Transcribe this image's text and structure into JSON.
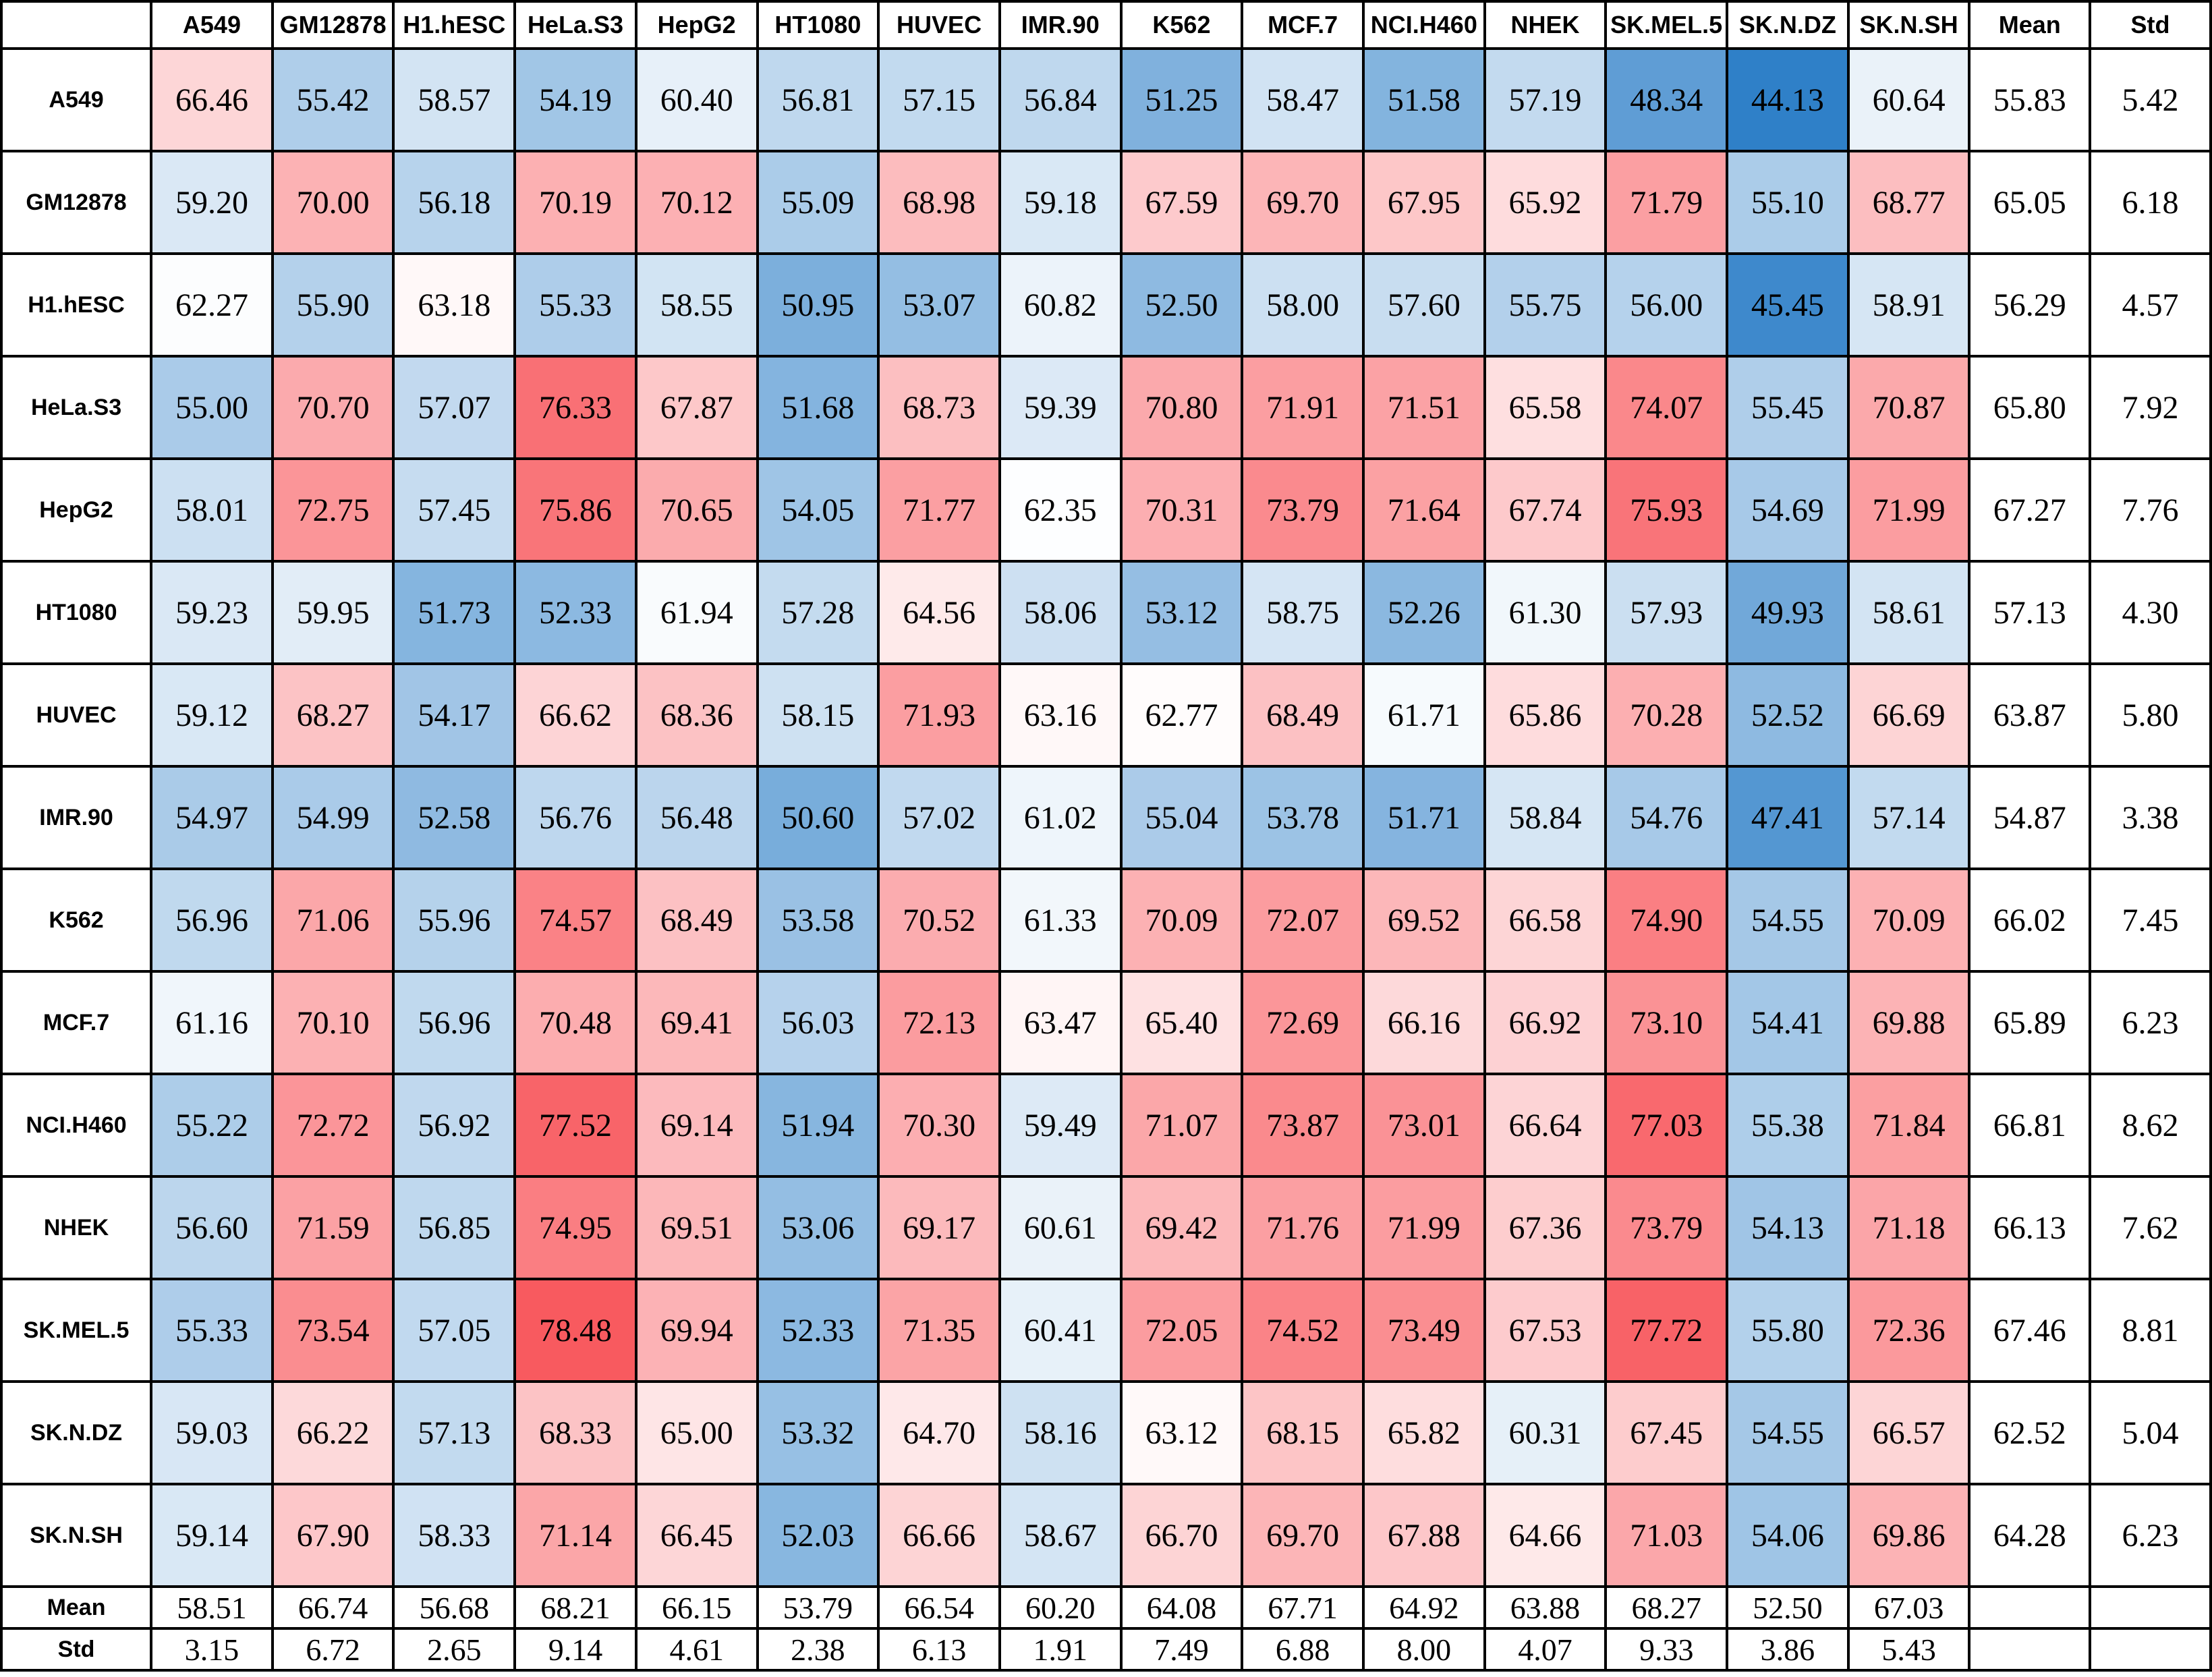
{
  "chart_data": {
    "type": "heatmap",
    "title": "",
    "colors": {
      "low": "#2f80c8",
      "mid": "#ffffff",
      "high": "#f85a5f"
    },
    "color_scale": {
      "min": 44.13,
      "mid": 62.5,
      "max": 78.48
    },
    "columns": [
      "A549",
      "GM12878",
      "H1.hESC",
      "HeLa.S3",
      "HepG2",
      "HT1080",
      "HUVEC",
      "IMR.90",
      "K562",
      "MCF.7",
      "NCI.H460",
      "NHEK",
      "SK.MEL.5",
      "SK.N.DZ",
      "SK.N.SH"
    ],
    "stat_columns": [
      "Mean",
      "Std"
    ],
    "rows": [
      {
        "label": "A549",
        "values": [
          66.46,
          55.42,
          58.57,
          54.19,
          60.4,
          56.81,
          57.15,
          56.84,
          51.25,
          58.47,
          51.58,
          57.19,
          48.34,
          44.13,
          60.64
        ],
        "mean": 55.83,
        "std": 5.42
      },
      {
        "label": "GM12878",
        "values": [
          59.2,
          70.0,
          56.18,
          70.19,
          70.12,
          55.09,
          68.98,
          59.18,
          67.59,
          69.7,
          67.95,
          65.92,
          71.79,
          55.1,
          68.77
        ],
        "mean": 65.05,
        "std": 6.18
      },
      {
        "label": "H1.hESC",
        "values": [
          62.27,
          55.9,
          63.18,
          55.33,
          58.55,
          50.95,
          53.07,
          60.82,
          52.5,
          58.0,
          57.6,
          55.75,
          56.0,
          45.45,
          58.91
        ],
        "mean": 56.29,
        "std": 4.57
      },
      {
        "label": "HeLa.S3",
        "values": [
          55.0,
          70.7,
          57.07,
          76.33,
          67.87,
          51.68,
          68.73,
          59.39,
          70.8,
          71.91,
          71.51,
          65.58,
          74.07,
          55.45,
          70.87
        ],
        "mean": 65.8,
        "std": 7.92
      },
      {
        "label": "HepG2",
        "values": [
          58.01,
          72.75,
          57.45,
          75.86,
          70.65,
          54.05,
          71.77,
          62.35,
          70.31,
          73.79,
          71.64,
          67.74,
          75.93,
          54.69,
          71.99
        ],
        "mean": 67.27,
        "std": 7.76
      },
      {
        "label": "HT1080",
        "values": [
          59.23,
          59.95,
          51.73,
          52.33,
          61.94,
          57.28,
          64.56,
          58.06,
          53.12,
          58.75,
          52.26,
          61.3,
          57.93,
          49.93,
          58.61
        ],
        "mean": 57.13,
        "std": 4.3
      },
      {
        "label": "HUVEC",
        "values": [
          59.12,
          68.27,
          54.17,
          66.62,
          68.36,
          58.15,
          71.93,
          63.16,
          62.77,
          68.49,
          61.71,
          65.86,
          70.28,
          52.52,
          66.69
        ],
        "mean": 63.87,
        "std": 5.8
      },
      {
        "label": "IMR.90",
        "values": [
          54.97,
          54.99,
          52.58,
          56.76,
          56.48,
          50.6,
          57.02,
          61.02,
          55.04,
          53.78,
          51.71,
          58.84,
          54.76,
          47.41,
          57.14
        ],
        "mean": 54.87,
        "std": 3.38
      },
      {
        "label": "K562",
        "values": [
          56.96,
          71.06,
          55.96,
          74.57,
          68.49,
          53.58,
          70.52,
          61.33,
          70.09,
          72.07,
          69.52,
          66.58,
          74.9,
          54.55,
          70.09
        ],
        "mean": 66.02,
        "std": 7.45
      },
      {
        "label": "MCF.7",
        "values": [
          61.16,
          70.1,
          56.96,
          70.48,
          69.41,
          56.03,
          72.13,
          63.47,
          65.4,
          72.69,
          66.16,
          66.92,
          73.1,
          54.41,
          69.88
        ],
        "mean": 65.89,
        "std": 6.23
      },
      {
        "label": "NCI.H460",
        "values": [
          55.22,
          72.72,
          56.92,
          77.52,
          69.14,
          51.94,
          70.3,
          59.49,
          71.07,
          73.87,
          73.01,
          66.64,
          77.03,
          55.38,
          71.84
        ],
        "mean": 66.81,
        "std": 8.62
      },
      {
        "label": "NHEK",
        "values": [
          56.6,
          71.59,
          56.85,
          74.95,
          69.51,
          53.06,
          69.17,
          60.61,
          69.42,
          71.76,
          71.99,
          67.36,
          73.79,
          54.13,
          71.18
        ],
        "mean": 66.13,
        "std": 7.62
      },
      {
        "label": "SK.MEL.5",
        "values": [
          55.33,
          73.54,
          57.05,
          78.48,
          69.94,
          52.33,
          71.35,
          60.41,
          72.05,
          74.52,
          73.49,
          67.53,
          77.72,
          55.8,
          72.36
        ],
        "mean": 67.46,
        "std": 8.81
      },
      {
        "label": "SK.N.DZ",
        "values": [
          59.03,
          66.22,
          57.13,
          68.33,
          65.0,
          53.32,
          64.7,
          58.16,
          63.12,
          68.15,
          65.82,
          60.31,
          67.45,
          54.55,
          66.57
        ],
        "mean": 62.52,
        "std": 5.04
      },
      {
        "label": "SK.N.SH",
        "values": [
          59.14,
          67.9,
          58.33,
          71.14,
          66.45,
          52.03,
          66.66,
          58.67,
          66.7,
          69.7,
          67.88,
          64.66,
          71.03,
          54.06,
          69.86
        ],
        "mean": 64.28,
        "std": 6.23
      }
    ],
    "footer_rows": [
      {
        "label": "Mean",
        "values": [
          58.51,
          66.74,
          56.68,
          68.21,
          66.15,
          53.79,
          66.54,
          60.2,
          64.08,
          67.71,
          64.92,
          63.88,
          68.27,
          52.5,
          67.03
        ]
      },
      {
        "label": "Std",
        "values": [
          3.15,
          6.72,
          2.65,
          9.14,
          4.61,
          2.38,
          6.13,
          1.91,
          7.49,
          6.88,
          8.0,
          4.07,
          9.33,
          3.86,
          5.43
        ]
      }
    ]
  }
}
